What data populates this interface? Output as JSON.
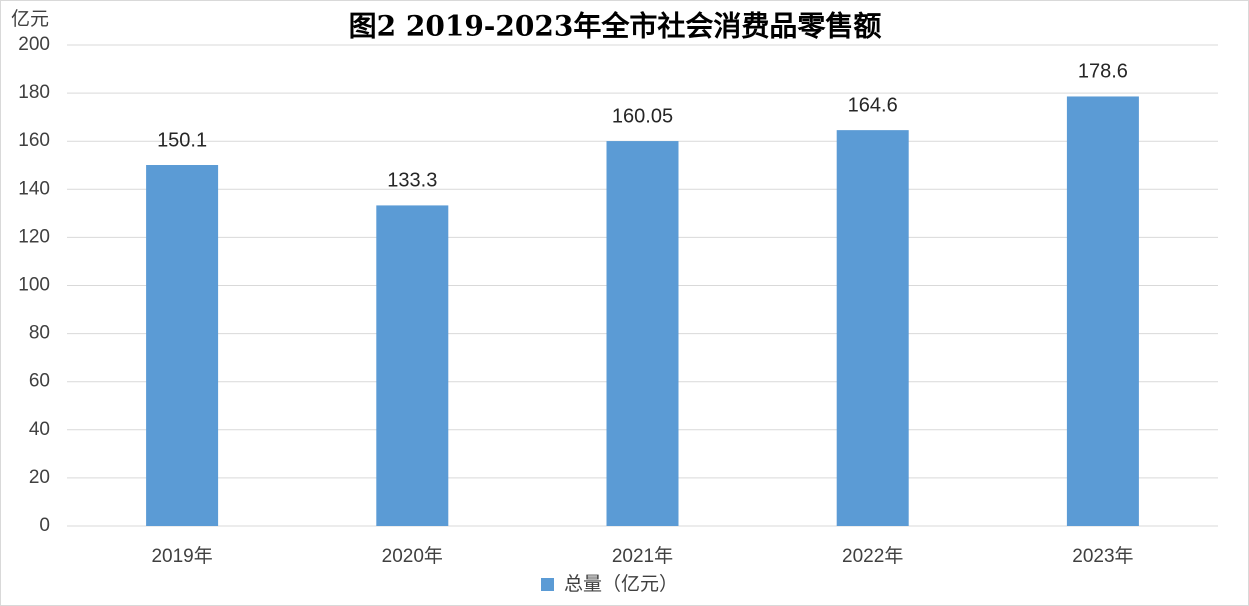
{
  "chart_data": {
    "type": "bar",
    "title": "图2 2019-2023年全市社会消费品零售额",
    "y_label": "亿元",
    "categories": [
      "2019年",
      "2020年",
      "2021年",
      "2022年",
      "2023年"
    ],
    "series": [
      {
        "name": "总量（亿元）",
        "color": "#5b9bd5",
        "values": [
          150.1,
          133.3,
          160.05,
          164.6,
          178.6
        ]
      }
    ],
    "ylim": [
      0,
      200
    ],
    "yticks": [
      0,
      20,
      40,
      60,
      80,
      100,
      120,
      140,
      160,
      180,
      200
    ],
    "grid": true
  }
}
